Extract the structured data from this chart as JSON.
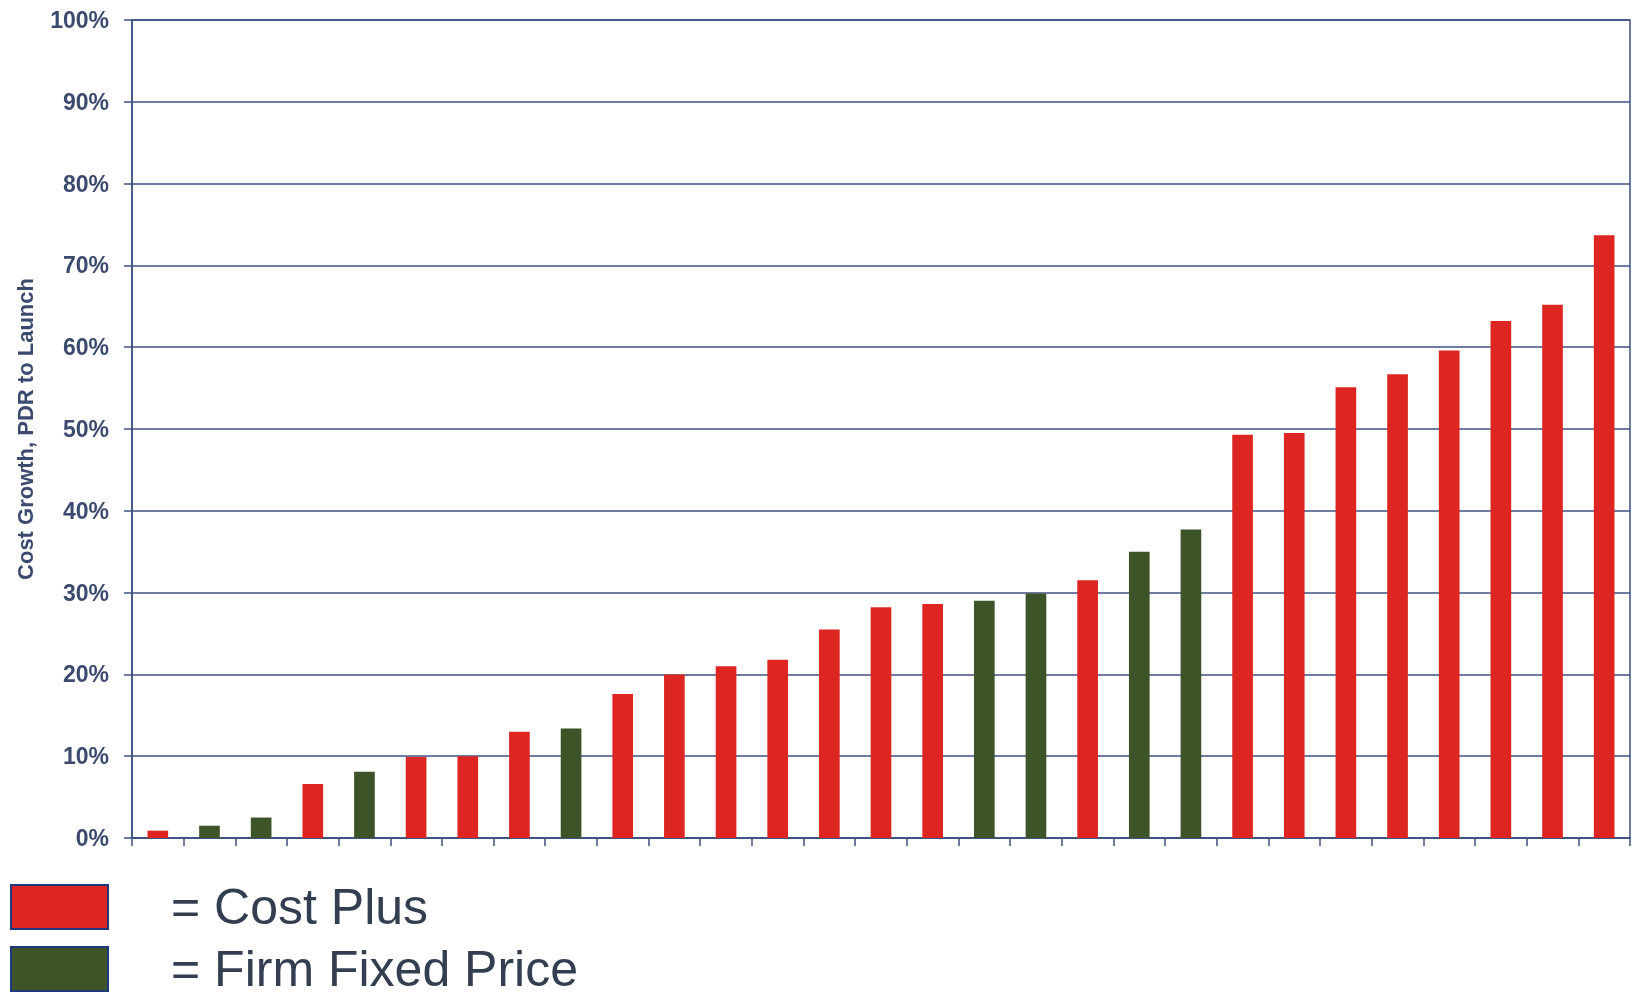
{
  "chart_data": {
    "type": "bar",
    "ylabel": "Cost Growth, PDR to Launch",
    "categories": [
      null,
      null,
      null,
      null,
      null,
      null,
      null,
      null,
      null,
      null,
      null,
      null,
      null,
      null,
      null,
      null,
      null,
      null,
      null,
      null,
      null,
      null,
      null,
      null,
      null,
      null,
      null,
      null,
      null
    ],
    "series": [
      {
        "name": "= Cost Plus",
        "color": "#dd2622",
        "values": [
          0.9,
          null,
          null,
          6.6,
          null,
          9.9,
          10.0,
          13.0,
          null,
          17.6,
          20.0,
          21.0,
          21.8,
          25.5,
          28.2,
          28.6,
          null,
          null,
          31.5,
          null,
          null,
          49.3,
          49.5,
          55.1,
          56.7,
          59.6,
          63.2,
          65.2,
          73.7
        ]
      },
      {
        "name": "= Firm Fixed Price",
        "color": "#3d5328",
        "values": [
          null,
          1.5,
          2.5,
          null,
          8.1,
          null,
          null,
          null,
          13.4,
          null,
          null,
          null,
          null,
          null,
          null,
          null,
          29.0,
          29.9,
          null,
          35.0,
          37.7,
          null,
          null,
          null,
          null,
          null,
          null,
          null,
          null
        ]
      }
    ],
    "ylim": [
      0,
      100
    ],
    "yticks": [
      {
        "value": 0,
        "label": "0%"
      },
      {
        "value": 10,
        "label": "10%"
      },
      {
        "value": 20,
        "label": "20%"
      },
      {
        "value": 30,
        "label": "30%"
      },
      {
        "value": 40,
        "label": "40%"
      },
      {
        "value": 50,
        "label": "50%"
      },
      {
        "value": 60,
        "label": "60%"
      },
      {
        "value": 70,
        "label": "70%"
      },
      {
        "value": 80,
        "label": "80%"
      },
      {
        "value": 90,
        "label": "90%"
      },
      {
        "value": 100,
        "label": "100%"
      }
    ],
    "grid": "y",
    "legend": "bottom left",
    "tick_labels": "y"
  }
}
